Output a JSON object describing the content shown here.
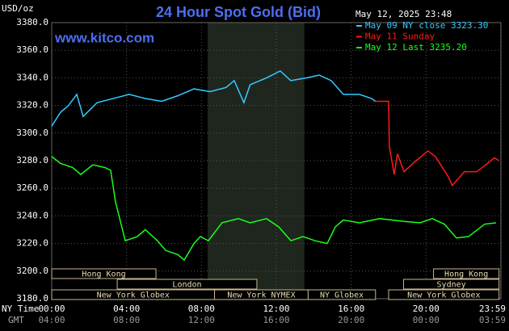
{
  "chart_data": {
    "type": "line",
    "title": "24 Hour Spot Gold (Bid)",
    "unit_label": "USD/oz",
    "website": "www.kitco.com",
    "timestamp": "May 12, 2025 23:48",
    "xlim": [
      0,
      24
    ],
    "ylim": [
      3180,
      3380
    ],
    "yticks": [
      {
        "value": 3180,
        "label": "3180.0"
      },
      {
        "value": 3200,
        "label": "3200.0"
      },
      {
        "value": 3220,
        "label": "3220.0"
      },
      {
        "value": 3240,
        "label": "3240.0"
      },
      {
        "value": 3260,
        "label": "3260.0"
      },
      {
        "value": 3280,
        "label": "3280.0"
      },
      {
        "value": 3300,
        "label": "3300.0"
      },
      {
        "value": 3320,
        "label": "3320.0"
      },
      {
        "value": 3340,
        "label": "3340.0"
      },
      {
        "value": 3360,
        "label": "3360.0"
      },
      {
        "value": 3380,
        "label": "3380.0"
      }
    ],
    "xticks": [
      {
        "value": 0,
        "label": "00:00"
      },
      {
        "value": 4,
        "label": "04:00"
      },
      {
        "value": 8,
        "label": "08:00"
      },
      {
        "value": 12,
        "label": "12:00"
      },
      {
        "value": 16,
        "label": "16:00"
      },
      {
        "value": 20,
        "label": "20:00"
      },
      {
        "value": 23.98,
        "label": "23:59"
      }
    ],
    "x_axis_label": "NY Time",
    "x2_axis_label": "GMT",
    "gmt_labels": [
      "04:00",
      "08:00",
      "12:00",
      "16:00",
      "20:00",
      "00:00",
      "03:59"
    ],
    "grid": true,
    "shaded_period": [
      8.33,
      13.5
    ],
    "sessions": [
      {
        "label": "Hong Kong",
        "row": 0,
        "start": 0,
        "end": 5.57
      },
      {
        "label": "Hong Kong",
        "row": 0,
        "start": 20.4,
        "end": 23.9
      },
      {
        "label": "London",
        "row": 1,
        "start": 3.5,
        "end": 10.96
      },
      {
        "label": "Sydney",
        "row": 1,
        "start": 18.8,
        "end": 23.9
      },
      {
        "label": "New York Globex",
        "row": 2,
        "start": 0,
        "end": 8.7
      },
      {
        "label": "New York NYMEX",
        "row": 2,
        "start": 8.7,
        "end": 13.7
      },
      {
        "label": "NY Globex",
        "row": 2,
        "start": 13.7,
        "end": 17.3
      },
      {
        "label": "New York Globex",
        "row": 2,
        "start": 18,
        "end": 23.9
      }
    ],
    "series": [
      {
        "name": "May 09 NY close 3323.30",
        "color": "#33ccff",
        "x": [
          0,
          0.47,
          0.9,
          1.34,
          1.68,
          2.42,
          3.28,
          4.14,
          5.0,
          5.87,
          6.73,
          7.6,
          8.46,
          9.32,
          9.75,
          10.27,
          10.6,
          11.48,
          12.21,
          12.77,
          13.64,
          14.29,
          14.93,
          15.58,
          16.44,
          17.09,
          17.3
        ],
        "values": [
          3305,
          3315,
          3320,
          3328,
          3312,
          3322,
          3325,
          3328,
          3325,
          3323,
          3327,
          3332,
          3330,
          3333,
          3338,
          3322,
          3335,
          3340,
          3345,
          3338,
          3340,
          3342,
          3338,
          3328,
          3328,
          3325,
          3323
        ]
      },
      {
        "name": "May 11 Sunday",
        "color": "#ff1a1a",
        "x": [
          17.3,
          18.0,
          18.04,
          18.3,
          18.47,
          18.82,
          19.47,
          20.1,
          20.5,
          21.2,
          21.4,
          22.05,
          22.7,
          23.1,
          23.65,
          23.9
        ],
        "values": [
          3323,
          3323,
          3290,
          3270,
          3285,
          3272,
          3280,
          3287,
          3283,
          3268,
          3262,
          3272,
          3272,
          3276,
          3282,
          3280
        ]
      },
      {
        "name": "May 12 Last 3235.20",
        "color": "#1aff1a",
        "x": [
          0,
          0.47,
          1.12,
          1.55,
          2.2,
          2.85,
          3.15,
          3.41,
          3.93,
          4.57,
          5.0,
          5.65,
          6.09,
          6.73,
          7.08,
          7.6,
          7.94,
          8.37,
          9.1,
          9.97,
          10.6,
          11.48,
          12.13,
          12.78,
          13.42,
          14.07,
          14.72,
          15.15,
          15.58,
          16.44,
          17.52,
          18.17,
          18.82,
          19.68,
          20.33,
          20.98,
          21.62,
          22.27,
          23.13,
          23.74
        ],
        "values": [
          3283,
          3278,
          3275,
          3270,
          3277,
          3275,
          3273,
          3250,
          3222,
          3225,
          3230,
          3222,
          3215,
          3212,
          3208,
          3220,
          3225,
          3222,
          3235,
          3238,
          3235,
          3238,
          3232,
          3222,
          3225,
          3222,
          3220,
          3232,
          3237,
          3235,
          3238,
          3237,
          3236,
          3235,
          3238,
          3234,
          3224,
          3225,
          3234,
          3235
        ]
      }
    ]
  }
}
